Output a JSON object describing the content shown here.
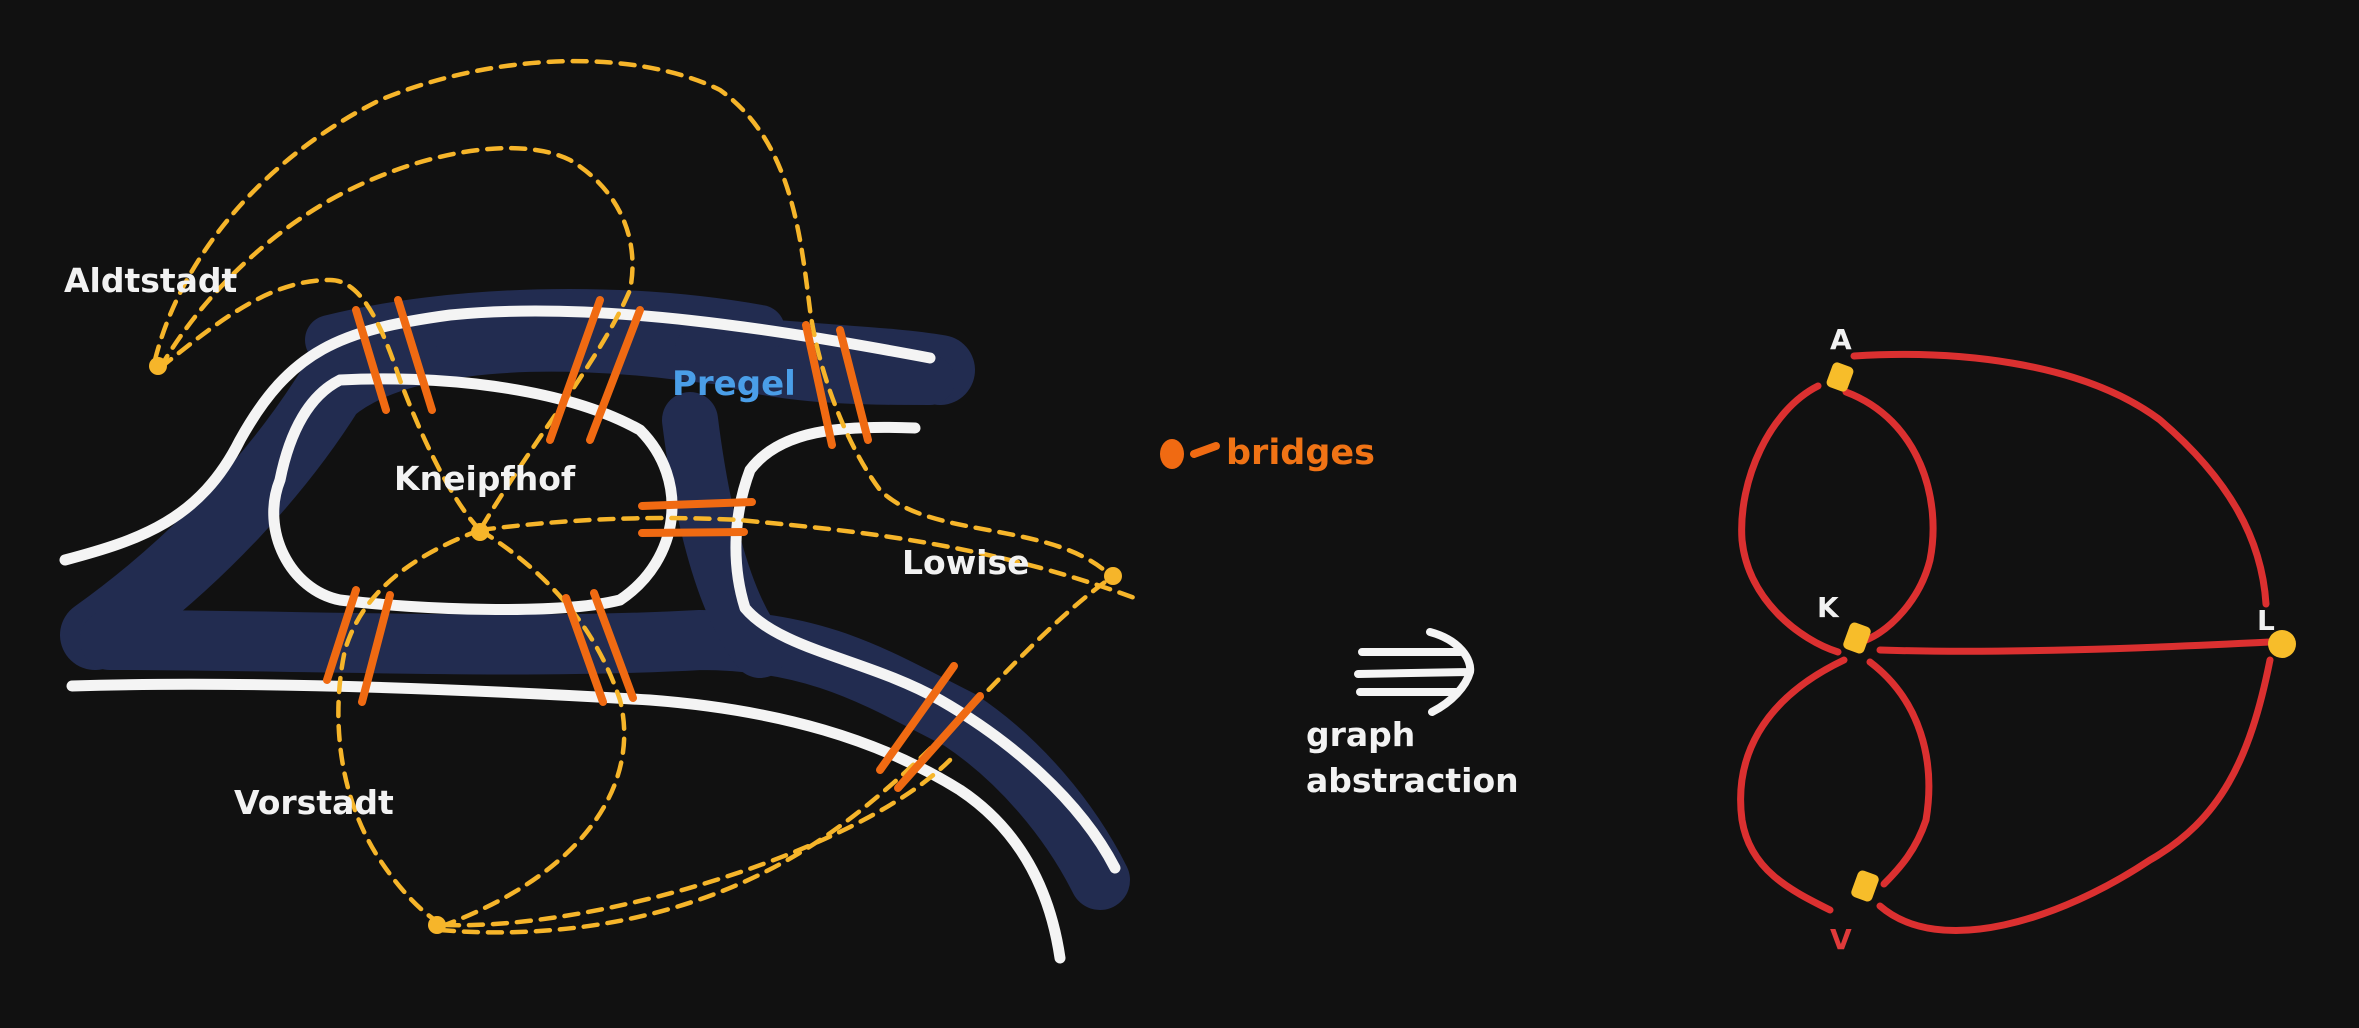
{
  "map": {
    "regions": [
      {
        "id": "aldtstadt",
        "label": "Aldtstadt"
      },
      {
        "id": "kneipfhof",
        "label": "Kneipfhof"
      },
      {
        "id": "lowise",
        "label": "Lowise"
      },
      {
        "id": "vorstadt",
        "label": "Vorstadt"
      }
    ],
    "river_label": "Pregel",
    "bridge_count": 7
  },
  "legend": {
    "bridges_label": "bridges"
  },
  "arrow": {
    "label_line1": "graph",
    "label_line2": "abstraction"
  },
  "graph": {
    "nodes": [
      {
        "id": "A",
        "label": "A"
      },
      {
        "id": "K",
        "label": "K"
      },
      {
        "id": "L",
        "label": "L"
      },
      {
        "id": "V",
        "label": "V"
      }
    ],
    "edges": [
      {
        "from": "A",
        "to": "K"
      },
      {
        "from": "A",
        "to": "K"
      },
      {
        "from": "A",
        "to": "L"
      },
      {
        "from": "K",
        "to": "L"
      },
      {
        "from": "K",
        "to": "V"
      },
      {
        "from": "K",
        "to": "V"
      },
      {
        "from": "V",
        "to": "L"
      }
    ]
  },
  "colors": {
    "background": "#111111",
    "river": "#222c50",
    "bank": "#f4f4f4",
    "bridge": "#f06a12",
    "walk": "#f6b52a",
    "graph_edge": "#db3030",
    "graph_node": "#f7bd2a",
    "river_label": "#4a9ee8"
  }
}
